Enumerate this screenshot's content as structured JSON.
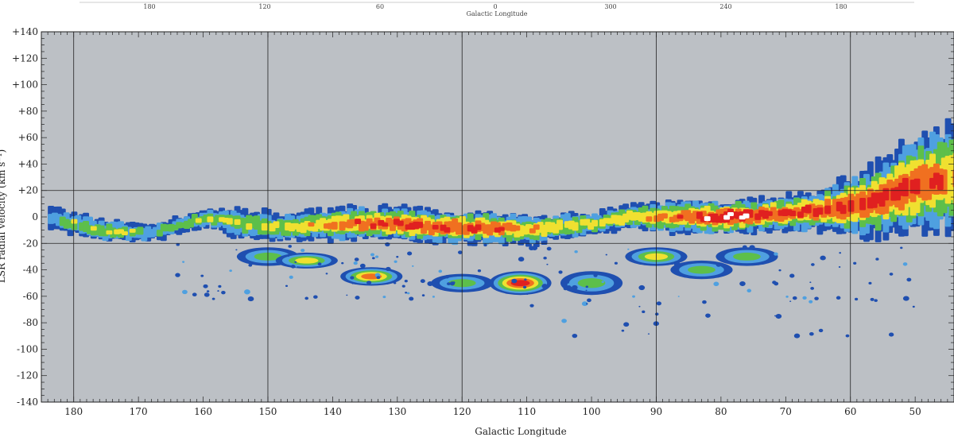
{
  "chart_data": {
    "type": "heatmap",
    "title": "",
    "xlabel": "Galactic Longitude",
    "ylabel": "LSR radial velocity  (km s⁻¹)",
    "x_reversed": true,
    "xlim": [
      185,
      44
    ],
    "ylim": [
      -140,
      140
    ],
    "x_ticks": [
      180,
      170,
      160,
      150,
      140,
      130,
      120,
      110,
      100,
      90,
      80,
      70,
      60,
      50
    ],
    "y_ticks": [
      "+140",
      "+120",
      "+100",
      "+80",
      "+60",
      "+40",
      "+20",
      "0",
      "-20",
      "-40",
      "-60",
      "-80",
      "-100",
      "-120",
      "-140"
    ],
    "y_tick_values": [
      140,
      120,
      100,
      80,
      60,
      40,
      20,
      0,
      -20,
      -40,
      -60,
      -80,
      -100,
      -120,
      -140
    ],
    "grid_vertical": [
      180,
      150,
      120,
      90,
      60
    ],
    "grid_horizontal": [
      20,
      -20
    ],
    "background_color": "#bcc0c5",
    "colorscale": [
      "#1f4fb0",
      "#4fa0e0",
      "#5dbf4a",
      "#f0e030",
      "#f07020",
      "#e02020",
      "#ffffff"
    ],
    "top_axis": {
      "label": "Galactic Longitude",
      "ticks": [
        "180",
        "120",
        "60",
        "0",
        "300",
        "240",
        "180"
      ]
    },
    "emission_band": {
      "description_points": [
        {
          "l": 184,
          "v_center": 0,
          "v_half_width": 8,
          "peak": 2
        },
        {
          "l": 177,
          "v_center": -10,
          "v_half_width": 8,
          "peak": 3
        },
        {
          "l": 168,
          "v_center": -12,
          "v_half_width": 6,
          "peak": 2
        },
        {
          "l": 160,
          "v_center": 0,
          "v_half_width": 6,
          "peak": 3
        },
        {
          "l": 155,
          "v_center": -5,
          "v_half_width": 10,
          "peak": 3
        },
        {
          "l": 148,
          "v_center": -8,
          "v_half_width": 10,
          "peak": 3
        },
        {
          "l": 140,
          "v_center": -5,
          "v_half_width": 12,
          "peak": 4
        },
        {
          "l": 130,
          "v_center": -5,
          "v_half_width": 12,
          "peak": 5
        },
        {
          "l": 125,
          "v_center": -8,
          "v_half_width": 12,
          "peak": 5
        },
        {
          "l": 118,
          "v_center": -8,
          "v_half_width": 12,
          "peak": 5
        },
        {
          "l": 110,
          "v_center": -10,
          "v_half_width": 10,
          "peak": 4
        },
        {
          "l": 100,
          "v_center": -5,
          "v_half_width": 8,
          "peak": 3
        },
        {
          "l": 95,
          "v_center": 0,
          "v_half_width": 8,
          "peak": 4
        },
        {
          "l": 88,
          "v_center": 0,
          "v_half_width": 12,
          "peak": 4
        },
        {
          "l": 80,
          "v_center": 0,
          "v_half_width": 12,
          "peak": 6
        },
        {
          "l": 72,
          "v_center": 2,
          "v_half_width": 12,
          "peak": 5
        },
        {
          "l": 65,
          "v_center": 5,
          "v_half_width": 15,
          "peak": 5
        },
        {
          "l": 58,
          "v_center": 10,
          "v_half_width": 25,
          "peak": 5
        },
        {
          "l": 50,
          "v_center": 25,
          "v_half_width": 35,
          "peak": 5
        },
        {
          "l": 44,
          "v_center": 30,
          "v_half_width": 40,
          "peak": 4
        }
      ],
      "negative_velocity_features": [
        {
          "l": 150,
          "v": -30,
          "half_w": 6,
          "peak": 2
        },
        {
          "l": 144,
          "v": -33,
          "half_w": 5,
          "peak": 3
        },
        {
          "l": 134,
          "v": -45,
          "half_w": 6,
          "peak": 4
        },
        {
          "l": 120,
          "v": -50,
          "half_w": 6,
          "peak": 2
        },
        {
          "l": 111,
          "v": -50,
          "half_w": 8,
          "peak": 5
        },
        {
          "l": 100,
          "v": -50,
          "half_w": 8,
          "peak": 2
        },
        {
          "l": 90,
          "v": -30,
          "half_w": 6,
          "peak": 3
        },
        {
          "l": 83,
          "v": -40,
          "half_w": 6,
          "peak": 2
        },
        {
          "l": 76,
          "v": -30,
          "half_w": 6,
          "peak": 2
        }
      ]
    }
  }
}
